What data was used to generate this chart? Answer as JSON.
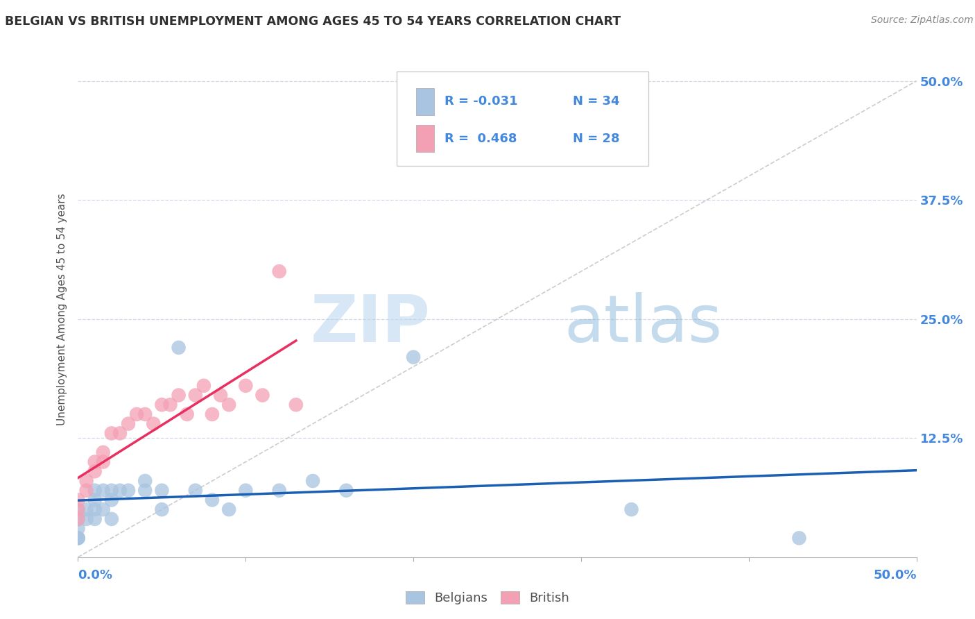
{
  "title": "BELGIAN VS BRITISH UNEMPLOYMENT AMONG AGES 45 TO 54 YEARS CORRELATION CHART",
  "source": "Source: ZipAtlas.com",
  "ylabel": "Unemployment Among Ages 45 to 54 years",
  "xlim": [
    0.0,
    0.5
  ],
  "ylim": [
    0.0,
    0.52
  ],
  "yticks": [
    0.0,
    0.125,
    0.25,
    0.375,
    0.5
  ],
  "ytick_labels": [
    "",
    "12.5%",
    "25.0%",
    "37.5%",
    "50.0%"
  ],
  "legend_r_belgian": "R = -0.031",
  "legend_n_belgian": "N = 34",
  "legend_r_british": "R =  0.468",
  "legend_n_british": "N = 28",
  "belgian_color": "#a8c4e0",
  "british_color": "#f4a0b4",
  "belgian_line_color": "#1a5fb4",
  "british_line_color": "#e83060",
  "ref_line_color": "#cccccc",
  "title_color": "#303030",
  "axis_label_color": "#4488dd",
  "watermark_zip": "ZIP",
  "watermark_atlas": "atlas",
  "belgians_x": [
    0.0,
    0.0,
    0.0,
    0.0,
    0.0,
    0.0,
    0.005,
    0.005,
    0.01,
    0.01,
    0.01,
    0.01,
    0.015,
    0.015,
    0.02,
    0.02,
    0.02,
    0.025,
    0.03,
    0.04,
    0.04,
    0.05,
    0.05,
    0.06,
    0.07,
    0.08,
    0.09,
    0.1,
    0.12,
    0.14,
    0.16,
    0.2,
    0.33,
    0.43
  ],
  "belgians_y": [
    0.02,
    0.02,
    0.02,
    0.03,
    0.04,
    0.05,
    0.04,
    0.05,
    0.04,
    0.05,
    0.06,
    0.07,
    0.05,
    0.07,
    0.04,
    0.06,
    0.07,
    0.07,
    0.07,
    0.08,
    0.07,
    0.05,
    0.07,
    0.22,
    0.07,
    0.06,
    0.05,
    0.07,
    0.07,
    0.08,
    0.07,
    0.21,
    0.05,
    0.02
  ],
  "british_x": [
    0.0,
    0.0,
    0.0,
    0.005,
    0.005,
    0.01,
    0.01,
    0.015,
    0.015,
    0.02,
    0.025,
    0.03,
    0.035,
    0.04,
    0.045,
    0.05,
    0.055,
    0.06,
    0.065,
    0.07,
    0.075,
    0.08,
    0.085,
    0.09,
    0.1,
    0.11,
    0.12,
    0.13
  ],
  "british_y": [
    0.04,
    0.05,
    0.06,
    0.07,
    0.08,
    0.09,
    0.1,
    0.1,
    0.11,
    0.13,
    0.13,
    0.14,
    0.15,
    0.15,
    0.14,
    0.16,
    0.16,
    0.17,
    0.15,
    0.17,
    0.18,
    0.15,
    0.17,
    0.16,
    0.18,
    0.17,
    0.3,
    0.16
  ]
}
